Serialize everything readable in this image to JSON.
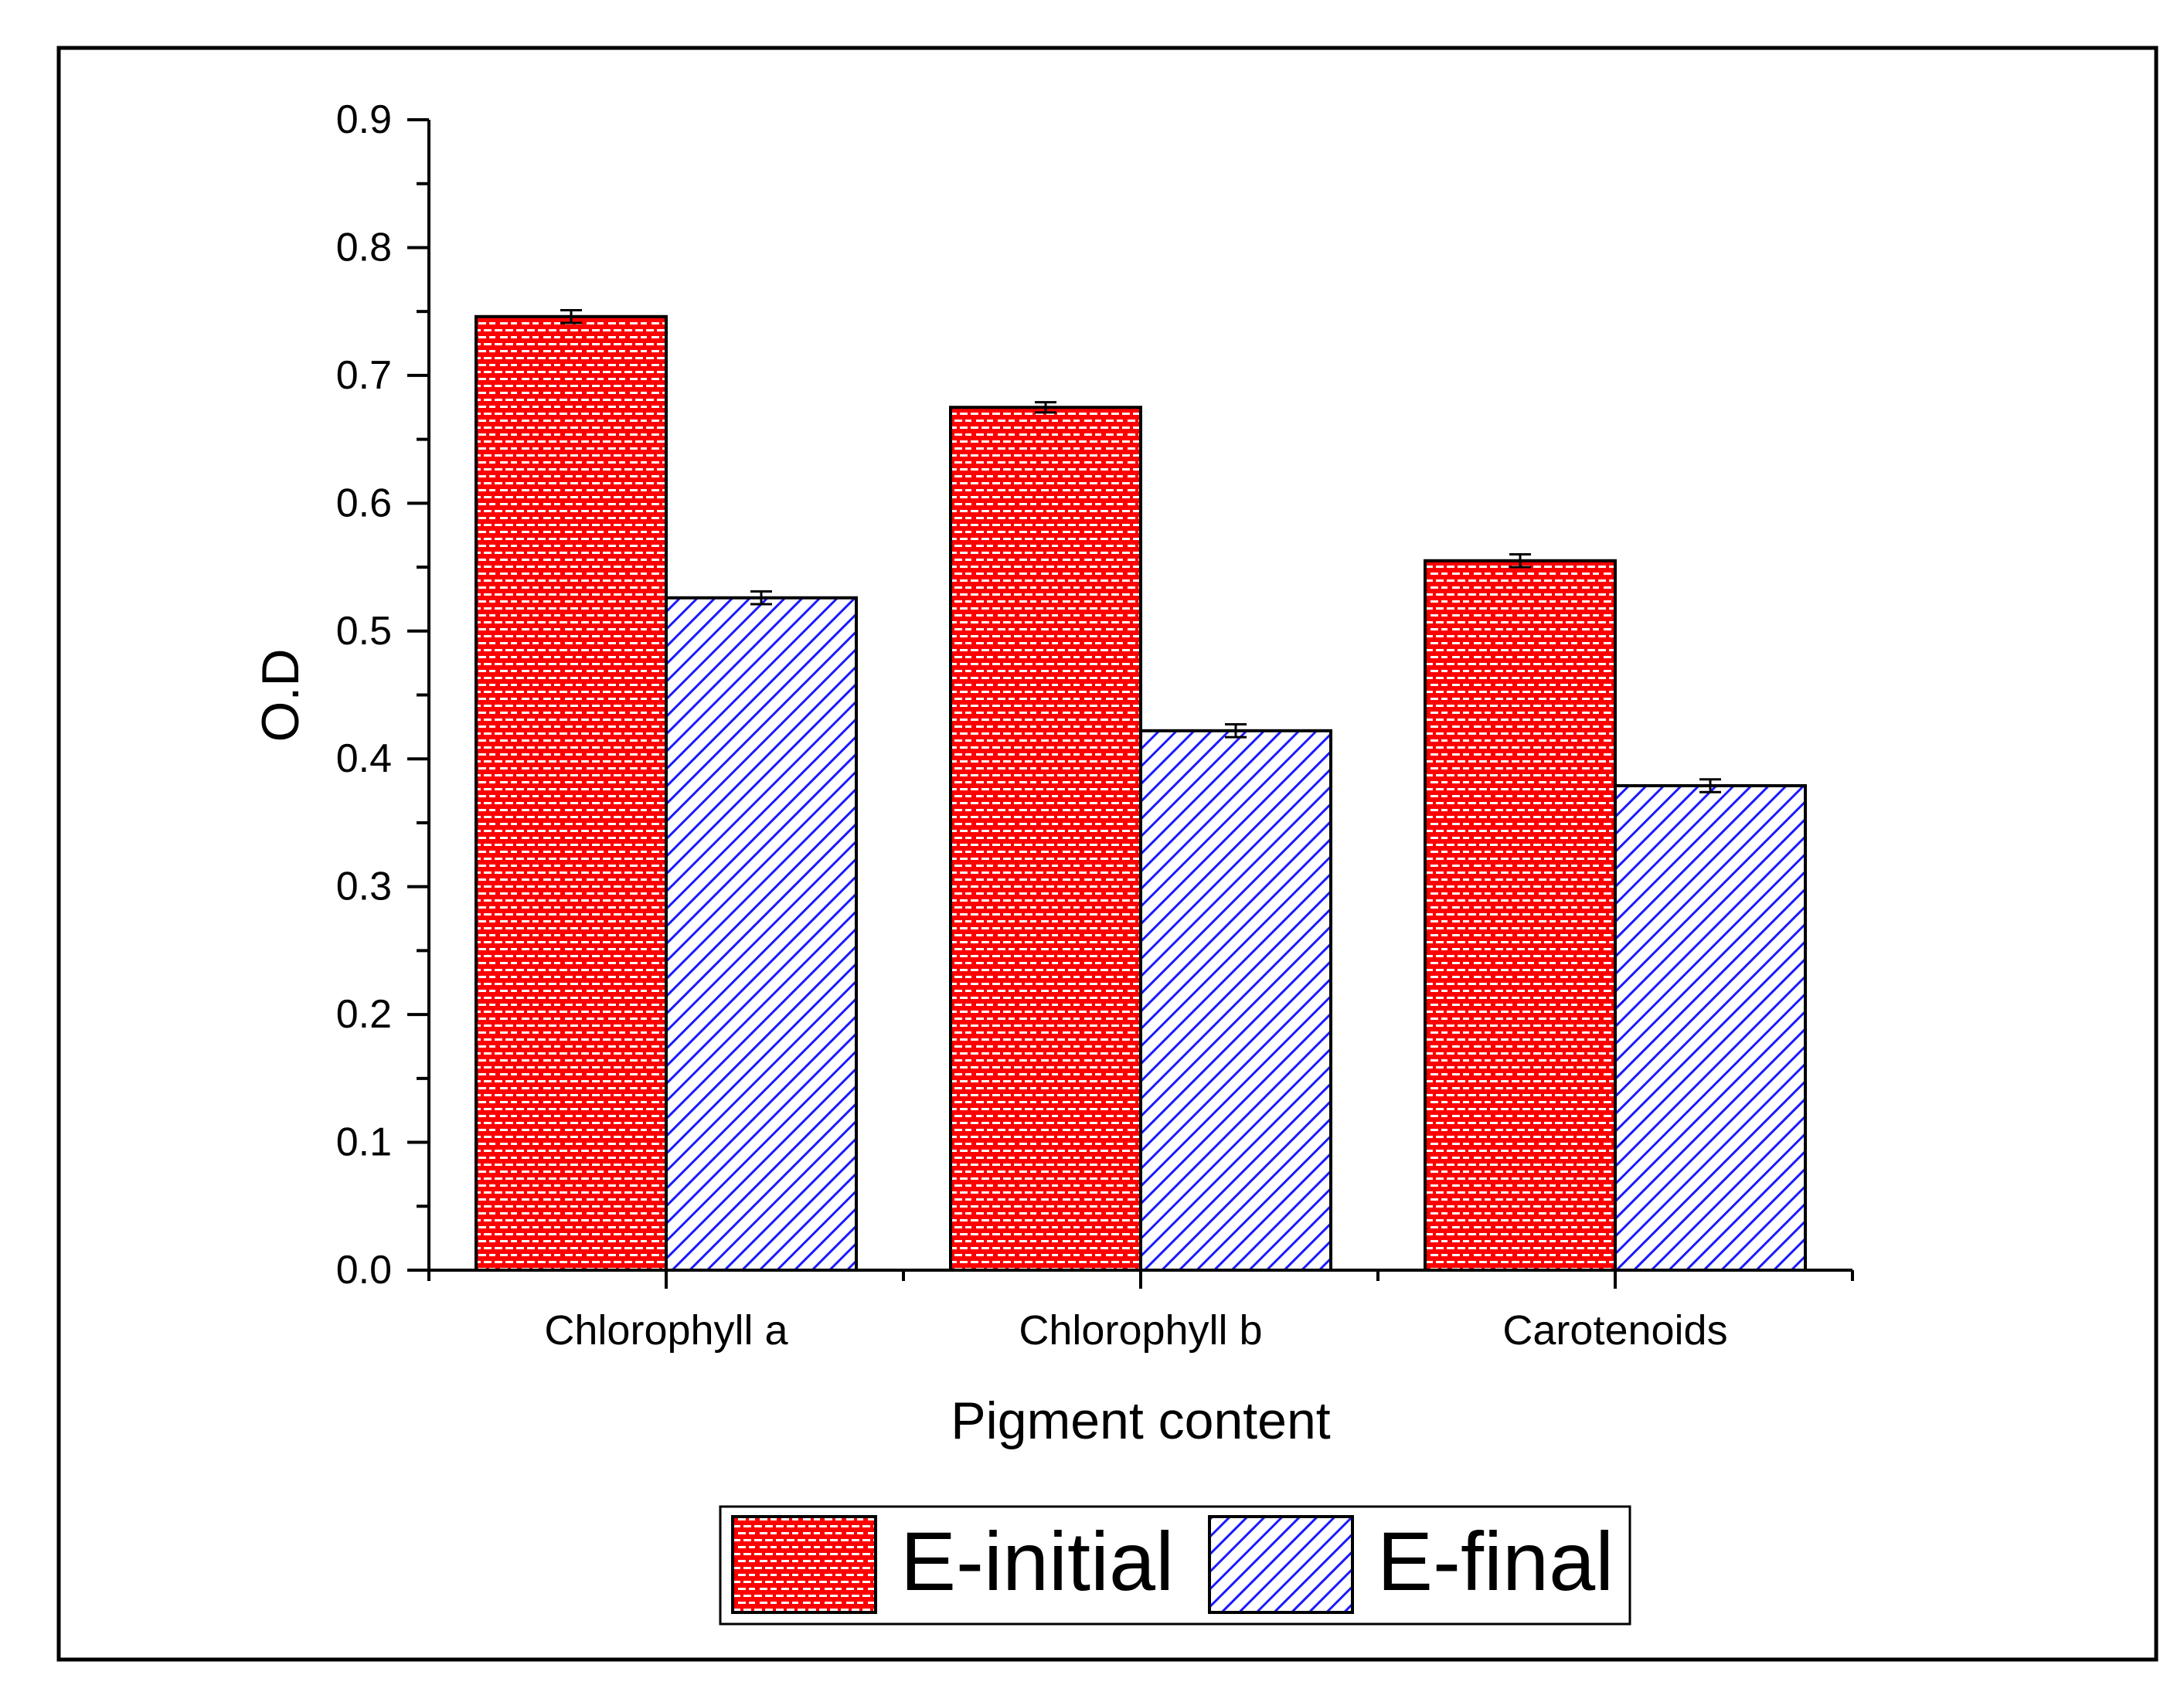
{
  "chart_data": {
    "type": "bar",
    "title": "",
    "xlabel": "Pigment content",
    "ylabel": "O.D",
    "ylim": [
      0,
      0.9
    ],
    "yticks": [
      "0.0",
      "0.1",
      "0.2",
      "0.3",
      "0.4",
      "0.5",
      "0.6",
      "0.7",
      "0.8",
      "0.9"
    ],
    "categories": [
      "Chlorophyll a",
      "Chlorophyll b",
      "Carotenoids"
    ],
    "series": [
      {
        "name": "E-initial",
        "color": "#ff0000",
        "pattern": "brick",
        "values": [
          0.746,
          0.675,
          0.555
        ],
        "errors": [
          0.005,
          0.004,
          0.005
        ]
      },
      {
        "name": "E-final",
        "color": "#1a1aff",
        "pattern": "diagonal-hatch",
        "values": [
          0.526,
          0.422,
          0.379
        ],
        "errors": [
          0.005,
          0.005,
          0.005
        ]
      }
    ],
    "legend": "bottom-center",
    "grid": false
  }
}
